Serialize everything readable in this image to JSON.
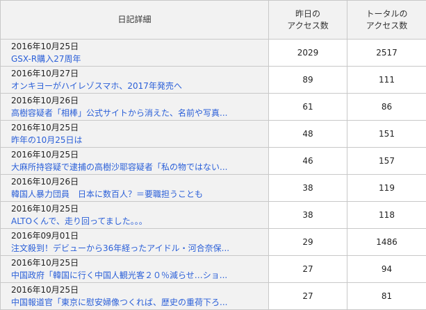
{
  "header": {
    "detail": "日記詳細",
    "yesterday_line1": "昨日の",
    "yesterday_line2": "アクセス数",
    "total_line1": "トータルの",
    "total_line2": "アクセス数"
  },
  "colors": {
    "link": "#2a5fd8",
    "header_bg": "#f2f2f2",
    "border": "#c8c8c8"
  },
  "rows": [
    {
      "date": "2016年10月25日",
      "title": "GSX-R購入27周年",
      "yesterday": "2029",
      "total": "2517"
    },
    {
      "date": "2016年10月27日",
      "title": "オンキヨーがハイレゾスマホ、2017年発売へ",
      "yesterday": "89",
      "total": "111"
    },
    {
      "date": "2016年10月26日",
      "title": "高樹容疑者「相棒」公式サイトから消えた、名前や写真...",
      "yesterday": "61",
      "total": "86"
    },
    {
      "date": "2016年10月25日",
      "title": "昨年の10月25日は",
      "yesterday": "48",
      "total": "151"
    },
    {
      "date": "2016年10月25日",
      "title": "大麻所持容疑で逮捕の高樹沙耶容疑者「私の物ではない...",
      "yesterday": "46",
      "total": "157"
    },
    {
      "date": "2016年10月26日",
      "title": "韓国人暴力団員　日本に数百人？＝要職担うことも",
      "yesterday": "38",
      "total": "119"
    },
    {
      "date": "2016年10月25日",
      "title": "ALTOくんで、走り回ってました。。。",
      "yesterday": "38",
      "total": "118"
    },
    {
      "date": "2016年09月01日",
      "title": "注文殺到！デビューから36年経ったアイドル・河合奈保...",
      "yesterday": "29",
      "total": "1486"
    },
    {
      "date": "2016年10月25日",
      "title": "中国政府「韓国に行く中国人観光客２０％減らせ…ショ...",
      "yesterday": "27",
      "total": "94"
    },
    {
      "date": "2016年10月25日",
      "title": "中国報道官「東京に慰安婦像つくれば、歴史の重荷下ろ...",
      "yesterday": "27",
      "total": "81"
    }
  ]
}
